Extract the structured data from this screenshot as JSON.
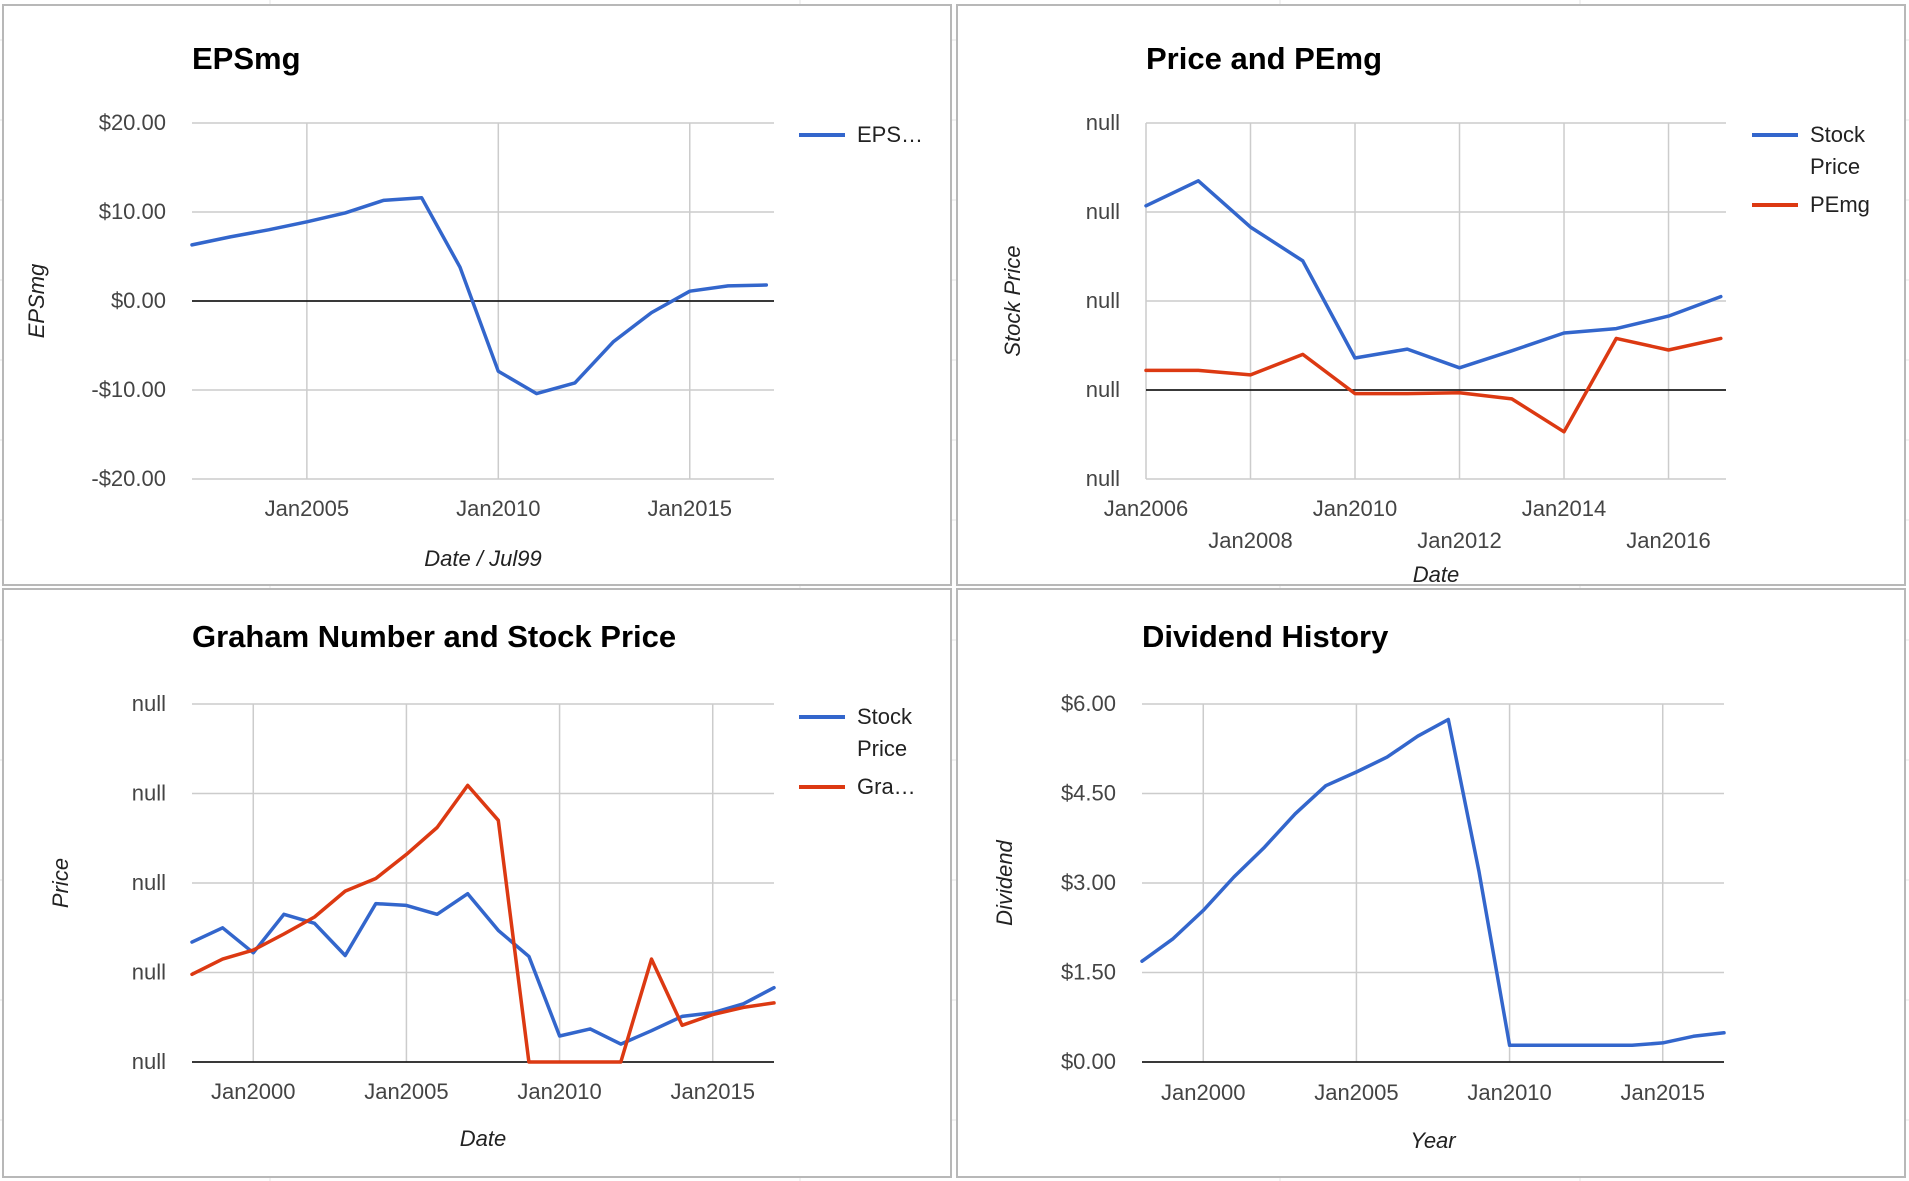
{
  "colors": {
    "blue": "#3366cc",
    "red": "#dc3912",
    "grid": "#cccccc",
    "baseline": "#000000"
  },
  "charts": [
    {
      "type": "line",
      "title": "EPSmg",
      "xlabel": "Date / Jul99",
      "ylabel": "EPSmg",
      "x_ticks": [
        "Jan2005",
        "Jan2010",
        "Jan2015"
      ],
      "y_ticks": [
        "$20.00",
        "$10.00",
        "$0.00",
        "-$10.00",
        "-$20.00"
      ],
      "legend": [
        {
          "label": "EPS…",
          "color": "#3366cc"
        }
      ]
    },
    {
      "type": "line",
      "title": "Price and PEmg",
      "xlabel": "Date",
      "ylabel": "Stock Price",
      "x_ticks": [
        "Jan2006",
        "Jan2008",
        "Jan2010",
        "Jan2012",
        "Jan2014",
        "Jan2016"
      ],
      "y_ticks": [
        "null",
        "null",
        "null",
        "null",
        "null"
      ],
      "legend": [
        {
          "label": "Stock Price",
          "lines": [
            "Stock",
            "Price"
          ],
          "color": "#3366cc"
        },
        {
          "label": "PEmg",
          "color": "#dc3912"
        }
      ]
    },
    {
      "type": "line",
      "title": "Graham Number and Stock Price",
      "xlabel": "Date",
      "ylabel": "Price",
      "x_ticks": [
        "Jan2000",
        "Jan2005",
        "Jan2010",
        "Jan2015"
      ],
      "y_ticks": [
        "null",
        "null",
        "null",
        "null",
        "null"
      ],
      "legend": [
        {
          "label": "Stock Price",
          "lines": [
            "Stock",
            "Price"
          ],
          "color": "#3366cc"
        },
        {
          "label": "Gra…",
          "color": "#dc3912"
        }
      ]
    },
    {
      "type": "line",
      "title": "Dividend History",
      "xlabel": "Year",
      "ylabel": "Dividend",
      "x_ticks": [
        "Jan2000",
        "Jan2005",
        "Jan2010",
        "Jan2015"
      ],
      "y_ticks": [
        "$6.00",
        "$4.50",
        "$3.00",
        "$1.50",
        "$0.00"
      ],
      "legend": []
    }
  ],
  "chart_data": [
    {
      "type": "line",
      "title": "EPSmg",
      "xlabel": "Date / Jul99",
      "ylabel": "EPSmg",
      "ylim": [
        -20,
        20
      ],
      "xlim": [
        2002.0,
        2017.2
      ],
      "x_axis": "date (decimal year)",
      "series": [
        {
          "name": "EPS…",
          "x": [
            2002.0,
            2003.0,
            2004.0,
            2005.0,
            2006.0,
            2007.0,
            2008.0,
            2009.0,
            2010.0,
            2011.0,
            2012.0,
            2013.0,
            2014.0,
            2015.0,
            2016.0,
            2017.0
          ],
          "y": [
            6.3,
            7.2,
            8.0,
            8.9,
            9.9,
            11.3,
            11.6,
            3.8,
            -7.9,
            -10.4,
            -9.2,
            -4.6,
            -1.3,
            1.1,
            1.7,
            1.8
          ]
        }
      ]
    },
    {
      "type": "line",
      "title": "Price and PEmg",
      "xlabel": "Date",
      "ylabel": "Stock Price",
      "y_tick_labels": [
        "null",
        "null",
        "null",
        "null",
        "null"
      ],
      "y_tick_positions": [
        -1,
        0,
        1,
        2,
        3
      ],
      "x_axis": "date (decimal year)",
      "xlim": [
        2006.0,
        2017.1
      ],
      "series": [
        {
          "name": "Stock Price",
          "x": [
            2006.0,
            2007.0,
            2008.0,
            2009.0,
            2010.0,
            2011.0,
            2012.0,
            2013.0,
            2014.0,
            2015.0,
            2016.0,
            2017.0
          ],
          "y": [
            2.07,
            2.35,
            1.83,
            1.45,
            0.36,
            0.46,
            0.25,
            0.44,
            0.64,
            0.69,
            0.83,
            1.05
          ]
        },
        {
          "name": "PEmg",
          "x": [
            2006.0,
            2007.0,
            2008.0,
            2009.0,
            2010.0,
            2011.0,
            2012.0,
            2013.0,
            2014.0,
            2015.0,
            2016.0,
            2017.0
          ],
          "y": [
            0.22,
            0.22,
            0.17,
            0.4,
            -0.04,
            -0.04,
            -0.03,
            -0.1,
            -0.47,
            0.58,
            0.45,
            0.58
          ]
        }
      ]
    },
    {
      "type": "line",
      "title": "Graham Number and Stock Price",
      "xlabel": "Date",
      "ylabel": "Price",
      "y_tick_labels": [
        "null",
        "null",
        "null",
        "null",
        "null"
      ],
      "y_tick_positions": [
        0,
        1,
        2,
        3,
        4
      ],
      "x_axis": "date (decimal year)",
      "xlim": [
        1998.0,
        2017.0
      ],
      "series": [
        {
          "name": "Stock Price",
          "x": [
            1998.0,
            1999.0,
            2000.0,
            2001.0,
            2002.0,
            2003.0,
            2004.0,
            2005.0,
            2006.0,
            2007.0,
            2008.0,
            2009.0,
            2010.0,
            2011.0,
            2012.0,
            2013.0,
            2014.0,
            2015.0,
            2016.0,
            2017.0
          ],
          "y": [
            1.34,
            1.5,
            1.22,
            1.65,
            1.55,
            1.19,
            1.77,
            1.75,
            1.65,
            1.88,
            1.47,
            1.18,
            0.29,
            0.37,
            0.2,
            0.35,
            0.51,
            0.55,
            0.65,
            0.83
          ]
        },
        {
          "name": "Gra…",
          "x": [
            1998.0,
            1999.0,
            2000.0,
            2001.0,
            2002.0,
            2003.0,
            2004.0,
            2005.0,
            2006.0,
            2007.0,
            2008.0,
            2009.0,
            2010.0,
            2011.0,
            2012.0,
            2013.0,
            2014.0,
            2015.0,
            2016.0,
            2017.0
          ],
          "y": [
            0.98,
            1.15,
            1.25,
            1.43,
            1.62,
            1.91,
            2.05,
            2.32,
            2.62,
            3.09,
            2.7,
            0.0,
            0.0,
            0.0,
            0.0,
            1.15,
            0.41,
            0.53,
            0.61,
            0.66
          ]
        }
      ]
    },
    {
      "type": "line",
      "title": "Dividend History",
      "xlabel": "Year",
      "ylabel": "Dividend",
      "ylim": [
        0,
        6
      ],
      "x_axis": "date (decimal year)",
      "xlim": [
        1998.0,
        2017.0
      ],
      "series": [
        {
          "name": "",
          "x": [
            1998.0,
            1999.0,
            2000.0,
            2001.0,
            2002.0,
            2003.0,
            2004.0,
            2005.0,
            2006.0,
            2007.0,
            2008.0,
            2009.0,
            2010.0,
            2011.0,
            2012.0,
            2013.0,
            2014.0,
            2015.0,
            2016.0,
            2017.0
          ],
          "y": [
            1.69,
            2.06,
            2.54,
            3.1,
            3.6,
            4.16,
            4.63,
            4.86,
            5.11,
            5.46,
            5.74,
            3.2,
            0.28,
            0.28,
            0.28,
            0.28,
            0.28,
            0.32,
            0.43,
            0.49
          ]
        }
      ]
    }
  ]
}
